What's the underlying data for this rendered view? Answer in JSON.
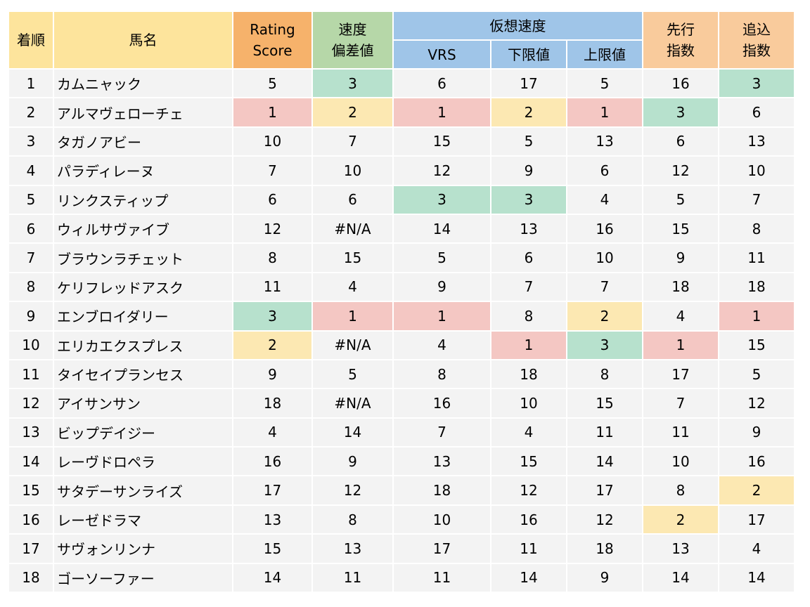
{
  "headers": {
    "rank": "着順",
    "name": "馬名",
    "rating": [
      "Rating",
      "Score"
    ],
    "speed_dev": [
      "速度",
      "偏差値"
    ],
    "virtual_speed": "仮想速度",
    "vrs": "VRS",
    "lower": "下限値",
    "upper": "上限値",
    "lead": [
      "先行",
      "指数"
    ],
    "closer": [
      "追込",
      "指数"
    ]
  },
  "header_colors": {
    "rank_name": "#fde49c",
    "rating": "#f6b26b",
    "speed_dev": "#b6d7a8",
    "virtual_speed": "#9fc5e8",
    "lead_closer": "#f9cb9c"
  },
  "highlight_colors": {
    "1": "#f4c7c3",
    "2": "#fce8b2",
    "3": "#b7e1cd"
  },
  "rows": [
    [
      "1",
      "カムニャック",
      "5",
      "3",
      "6",
      "17",
      "5",
      "16",
      "3"
    ],
    [
      "2",
      "アルマヴェローチェ",
      "1",
      "2",
      "1",
      "2",
      "1",
      "3",
      "6"
    ],
    [
      "3",
      "タガノアビー",
      "10",
      "7",
      "15",
      "5",
      "13",
      "6",
      "13"
    ],
    [
      "4",
      "パラディレーヌ",
      "7",
      "10",
      "12",
      "9",
      "6",
      "12",
      "10"
    ],
    [
      "5",
      "リンクスティップ",
      "6",
      "6",
      "3",
      "3",
      "4",
      "5",
      "7"
    ],
    [
      "6",
      "ウィルサヴァイブ",
      "12",
      "#N/A",
      "14",
      "13",
      "16",
      "15",
      "8"
    ],
    [
      "7",
      "ブラウンラチェット",
      "8",
      "15",
      "5",
      "6",
      "10",
      "9",
      "11"
    ],
    [
      "8",
      "ケリフレッドアスク",
      "11",
      "4",
      "9",
      "7",
      "7",
      "18",
      "18"
    ],
    [
      "9",
      "エンブロイダリー",
      "3",
      "1",
      "1",
      "8",
      "2",
      "4",
      "1"
    ],
    [
      "10",
      "エリカエクスプレス",
      "2",
      "#N/A",
      "4",
      "1",
      "3",
      "1",
      "15"
    ],
    [
      "11",
      "タイセイプランセス",
      "9",
      "5",
      "8",
      "18",
      "8",
      "17",
      "5"
    ],
    [
      "12",
      "アイサンサン",
      "18",
      "#N/A",
      "16",
      "10",
      "15",
      "7",
      "12"
    ],
    [
      "13",
      "ビップデイジー",
      "4",
      "14",
      "7",
      "4",
      "11",
      "11",
      "9"
    ],
    [
      "14",
      "レーヴドロペラ",
      "16",
      "9",
      "13",
      "15",
      "14",
      "10",
      "16"
    ],
    [
      "15",
      "サタデーサンライズ",
      "17",
      "12",
      "18",
      "12",
      "17",
      "8",
      "2"
    ],
    [
      "16",
      "レーゼドラマ",
      "13",
      "8",
      "10",
      "16",
      "12",
      "2",
      "17"
    ],
    [
      "17",
      "サヴォンリンナ",
      "15",
      "13",
      "17",
      "11",
      "18",
      "13",
      "4"
    ],
    [
      "18",
      "ゴーソーファー",
      "14",
      "11",
      "11",
      "14",
      "9",
      "14",
      "14"
    ]
  ]
}
